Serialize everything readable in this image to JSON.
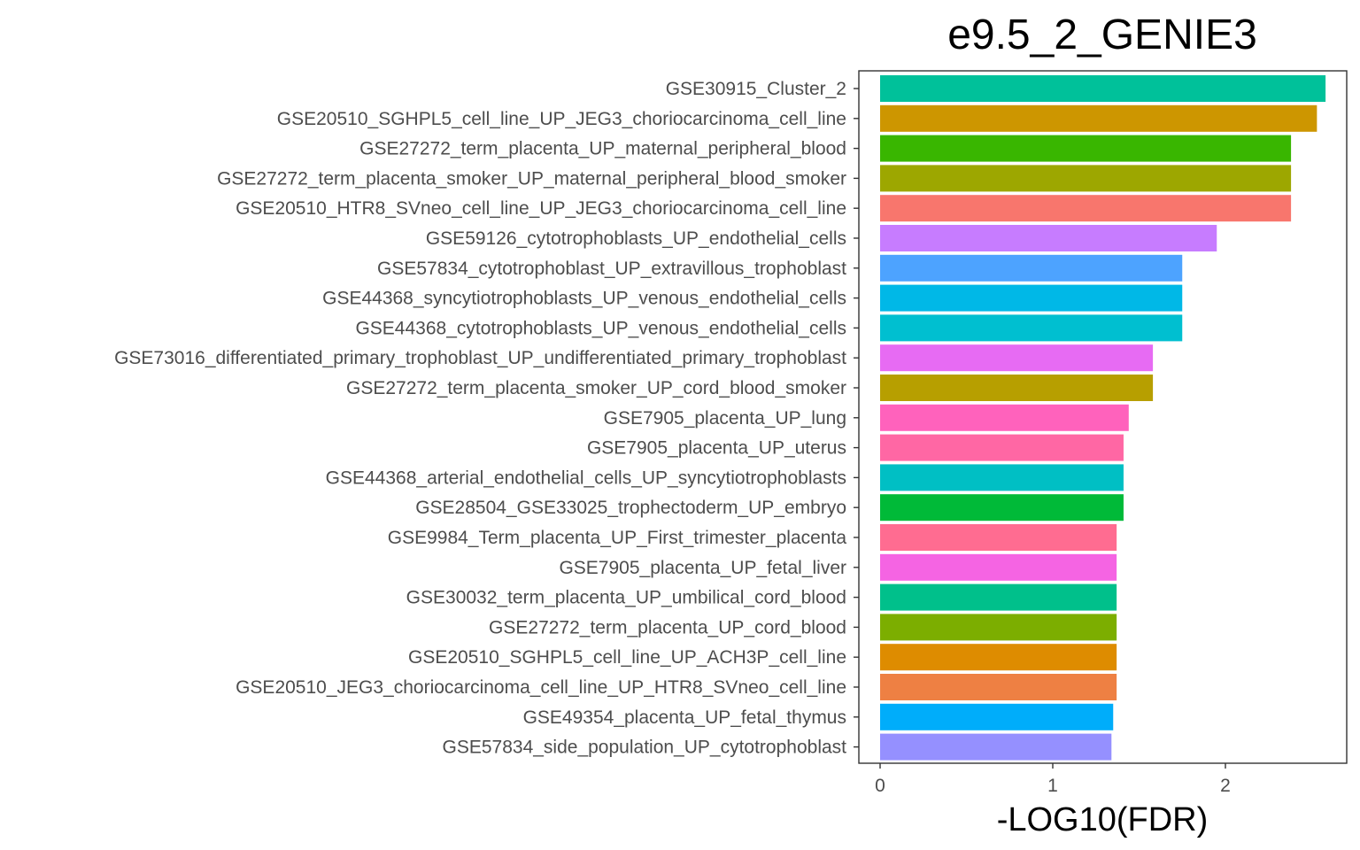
{
  "chart_data": {
    "type": "bar",
    "orientation": "horizontal",
    "title": "e9.5_2_GENIE3",
    "xlabel": "-LOG10(FDR)",
    "ylabel": "",
    "xlim": [
      0,
      2.8
    ],
    "xticks": [
      0,
      1,
      2
    ],
    "grid": false,
    "legend": "none",
    "bars": [
      {
        "label": "GSE30915_Cluster_2",
        "value": 2.58,
        "color": "#00C19A"
      },
      {
        "label": "GSE20510_SGHPL5_cell_line_UP_JEG3_choriocarcinoma_cell_line",
        "value": 2.53,
        "color": "#CD9600"
      },
      {
        "label": "GSE27272_term_placenta_UP_maternal_peripheral_blood",
        "value": 2.38,
        "color": "#39B600"
      },
      {
        "label": "GSE27272_term_placenta_smoker_UP_maternal_peripheral_blood_smoker",
        "value": 2.38,
        "color": "#9DA700"
      },
      {
        "label": "GSE20510_HTR8_SVneo_cell_line_UP_JEG3_choriocarcinoma_cell_line",
        "value": 2.38,
        "color": "#F8766D"
      },
      {
        "label": "GSE59126_cytotrophoblasts_UP_endothelial_cells",
        "value": 1.95,
        "color": "#C77CFF"
      },
      {
        "label": "GSE57834_cytotrophoblast_UP_extravillous_trophoblast",
        "value": 1.75,
        "color": "#4DA3FF"
      },
      {
        "label": "GSE44368_syncytiotrophoblasts_UP_venous_endothelial_cells",
        "value": 1.75,
        "color": "#00B8E7"
      },
      {
        "label": "GSE44368_cytotrophoblasts_UP_venous_endothelial_cells",
        "value": 1.75,
        "color": "#00BFD0"
      },
      {
        "label": "GSE73016_differentiated_primary_trophoblast_UP_undifferentiated_primary_trophoblast",
        "value": 1.58,
        "color": "#E76BF3"
      },
      {
        "label": "GSE27272_term_placenta_smoker_UP_cord_blood_smoker",
        "value": 1.58,
        "color": "#B79F00"
      },
      {
        "label": "GSE7905_placenta_UP_lung",
        "value": 1.44,
        "color": "#FF62BC"
      },
      {
        "label": "GSE7905_placenta_UP_uterus",
        "value": 1.41,
        "color": "#FF67A4"
      },
      {
        "label": "GSE44368_arterial_endothelial_cells_UP_syncytiotrophoblasts",
        "value": 1.41,
        "color": "#00BFC4"
      },
      {
        "label": "GSE28504_GSE33025_trophectoderm_UP_embryo",
        "value": 1.41,
        "color": "#00BA38"
      },
      {
        "label": "GSE9984_Term_placenta_UP_First_trimester_placenta",
        "value": 1.37,
        "color": "#FF6C91"
      },
      {
        "label": "GSE7905_placenta_UP_fetal_liver",
        "value": 1.37,
        "color": "#F564E3"
      },
      {
        "label": "GSE30032_term_placenta_UP_umbilical_cord_blood",
        "value": 1.37,
        "color": "#00C08B"
      },
      {
        "label": "GSE27272_term_placenta_UP_cord_blood",
        "value": 1.37,
        "color": "#7CAE00"
      },
      {
        "label": "GSE20510_SGHPL5_cell_line_UP_ACH3P_cell_line",
        "value": 1.37,
        "color": "#DE8C00"
      },
      {
        "label": "GSE20510_JEG3_choriocarcinoma_cell_line_UP_HTR8_SVneo_cell_line",
        "value": 1.37,
        "color": "#EE8043"
      },
      {
        "label": "GSE49354_placenta_UP_fetal_thymus",
        "value": 1.35,
        "color": "#00ADFA"
      },
      {
        "label": "GSE57834_side_population_UP_cytotrophoblast",
        "value": 1.34,
        "color": "#9590FF"
      }
    ]
  }
}
